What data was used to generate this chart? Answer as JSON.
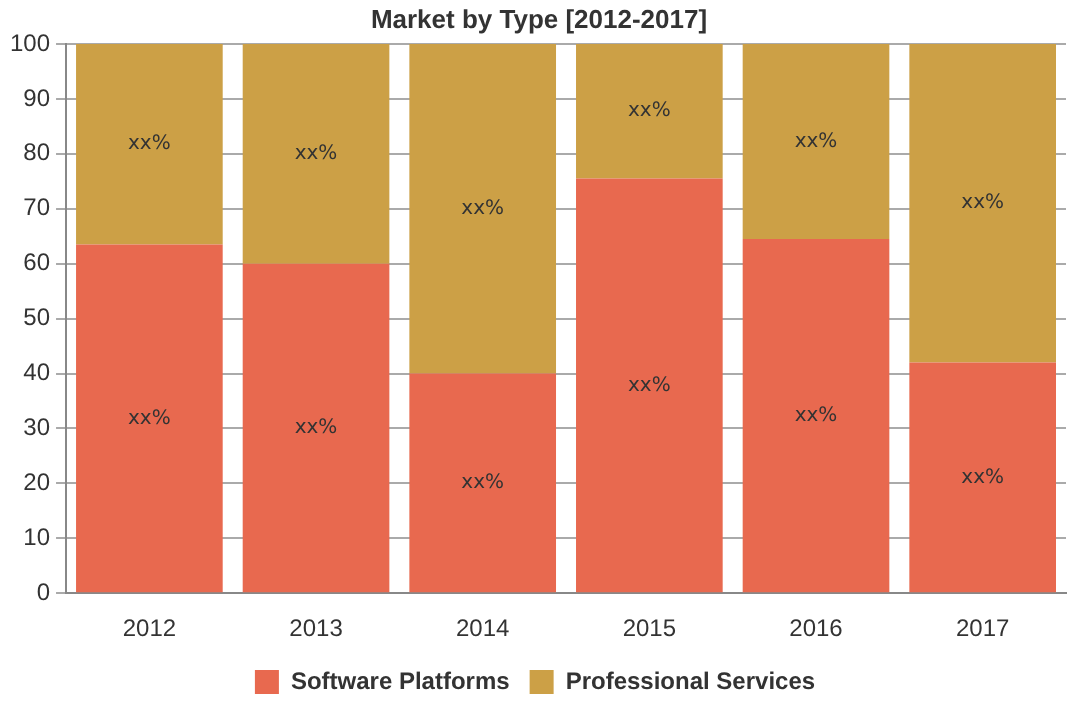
{
  "chart_data": {
    "type": "bar",
    "title": "Market by Type [2012-2017]",
    "categories": [
      "2012",
      "2013",
      "2014",
      "2015",
      "2016",
      "2017"
    ],
    "stacked": true,
    "series": [
      {
        "name": "Software Platforms",
        "color": "#e8694f",
        "values": [
          63.5,
          60,
          40,
          75.5,
          64.5,
          42
        ],
        "value_labels": [
          "xx%",
          "xx%",
          "xx%",
          "xx%",
          "xx%",
          "xx%"
        ]
      },
      {
        "name": "Professional Services",
        "color": "#cca046",
        "values": [
          36.5,
          40,
          60,
          24.5,
          35.5,
          58
        ],
        "value_labels": [
          "xx%",
          "xx%",
          "xx%",
          "xx%",
          "xx%",
          "xx%"
        ]
      }
    ],
    "ylim": [
      0,
      100
    ],
    "yticks": [
      0,
      10,
      20,
      30,
      40,
      50,
      60,
      70,
      80,
      90,
      100
    ],
    "grid": "y",
    "legend": "bottom"
  }
}
